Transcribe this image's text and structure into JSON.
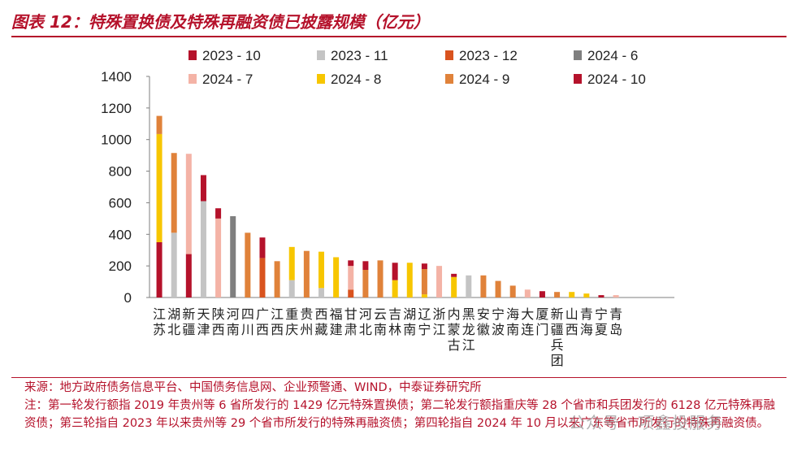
{
  "title": "图表 12：特殊置换债及特殊再融资债已披露规模（亿元）",
  "source": "来源：地方政府债务信息平台、中国债务信息网、企业预警通、WIND，中泰证券研究所",
  "note": "注：第一轮发行额指 2019 年贵州等 6 省所发行的 1429 亿元特殊置换债；第二轮发行额指重庆等 28 个省市和兵团发行的 6128 亿元特殊再融资债；第三轮指自 2023 年以来贵州等 29 个省市所发行的特殊再融资债；第四轮指自 2024 年 10 月以来广东等省市所发行的特殊再融资债。",
  "watermark": "公众号 · 项鑫投服务",
  "chart_data": {
    "type": "bar",
    "stacked": true,
    "ylim": [
      0,
      1400
    ],
    "yticks": [
      0,
      200,
      400,
      600,
      800,
      1000,
      1200,
      1400
    ],
    "legend_position": "top",
    "categories": [
      "江苏",
      "湖北",
      "新疆",
      "天津",
      "陕西",
      "河南",
      "四川",
      "广西",
      "江西",
      "重庆",
      "贵州",
      "西藏",
      "福建",
      "甘肃",
      "河北",
      "云南",
      "吉林",
      "湖南",
      "辽宁",
      "浙江",
      "内蒙古",
      "黑龙江",
      "安徽",
      "宁波",
      "海南",
      "大连",
      "厦门",
      "新疆兵团",
      "山西",
      "青海",
      "宁夏",
      "青岛"
    ],
    "series": [
      {
        "name": "2023 - 10",
        "color": "#b5122b",
        "values": [
          350,
          0,
          275,
          0,
          0,
          0,
          0,
          0,
          0,
          0,
          0,
          0,
          0,
          0,
          0,
          0,
          0,
          0,
          0,
          0,
          0,
          0,
          0,
          0,
          0,
          0,
          0,
          0,
          0,
          0,
          0,
          0
        ]
      },
      {
        "name": "2023 - 11",
        "color": "#c4c4c4",
        "values": [
          0,
          410,
          0,
          610,
          0,
          0,
          0,
          0,
          0,
          110,
          0,
          60,
          0,
          0,
          0,
          0,
          0,
          0,
          0,
          0,
          0,
          140,
          0,
          0,
          0,
          0,
          0,
          0,
          0,
          0,
          0,
          0
        ]
      },
      {
        "name": "2023 - 12",
        "color": "#d9531e",
        "values": [
          0,
          0,
          0,
          0,
          0,
          0,
          0,
          250,
          0,
          0,
          0,
          0,
          0,
          50,
          0,
          0,
          0,
          0,
          0,
          0,
          0,
          0,
          0,
          0,
          0,
          0,
          0,
          0,
          0,
          0,
          0,
          0
        ]
      },
      {
        "name": "2024 - 6",
        "color": "#7f7f7f",
        "values": [
          0,
          0,
          0,
          0,
          0,
          515,
          0,
          0,
          0,
          0,
          0,
          0,
          0,
          0,
          0,
          0,
          0,
          0,
          0,
          0,
          0,
          0,
          0,
          0,
          0,
          0,
          0,
          0,
          0,
          0,
          0,
          0
        ]
      },
      {
        "name": "2024 - 7",
        "color": "#f4b3a6",
        "values": [
          0,
          0,
          635,
          0,
          500,
          0,
          0,
          0,
          0,
          0,
          0,
          0,
          0,
          150,
          0,
          0,
          0,
          0,
          0,
          200,
          0,
          0,
          0,
          0,
          0,
          50,
          0,
          0,
          0,
          0,
          0,
          15
        ]
      },
      {
        "name": "2024 - 8",
        "color": "#f7c600",
        "values": [
          685,
          0,
          0,
          0,
          0,
          0,
          0,
          0,
          0,
          210,
          0,
          230,
          255,
          0,
          0,
          0,
          110,
          220,
          20,
          0,
          130,
          0,
          0,
          0,
          0,
          0,
          0,
          0,
          35,
          25,
          0,
          0
        ]
      },
      {
        "name": "2024 - 9",
        "color": "#e0823a",
        "values": [
          115,
          505,
          0,
          0,
          0,
          0,
          410,
          0,
          230,
          0,
          295,
          0,
          0,
          0,
          175,
          235,
          0,
          0,
          160,
          0,
          0,
          0,
          140,
          105,
          75,
          0,
          0,
          35,
          0,
          0,
          0,
          0
        ]
      },
      {
        "name": "2024 - 10",
        "color": "#b5122b",
        "values": [
          0,
          0,
          0,
          165,
          65,
          0,
          0,
          130,
          0,
          0,
          0,
          0,
          0,
          35,
          55,
          0,
          110,
          0,
          35,
          0,
          20,
          0,
          0,
          0,
          0,
          0,
          40,
          0,
          0,
          0,
          15,
          0
        ]
      }
    ]
  }
}
